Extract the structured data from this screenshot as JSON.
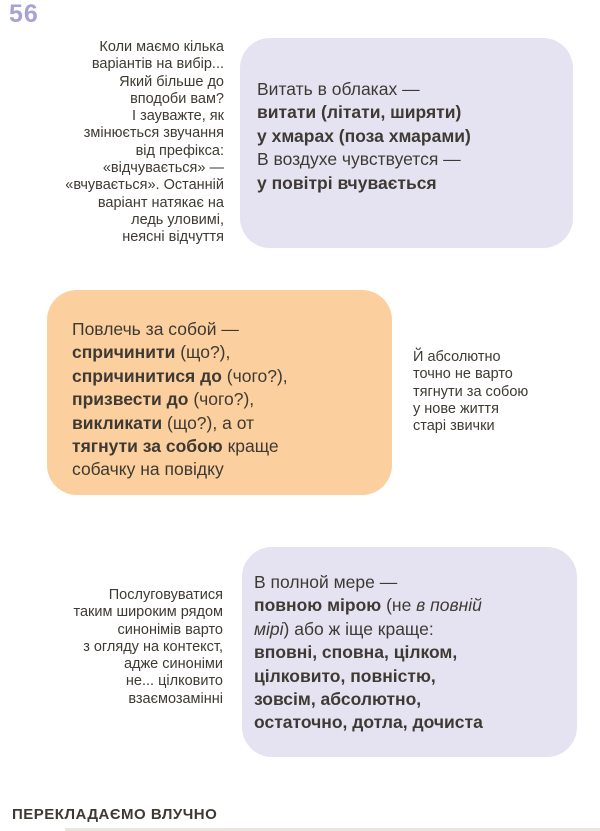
{
  "page": {
    "number": "56",
    "footer": "ПЕРЕКЛАДАЄМО ВЛУЧНО"
  },
  "colors": {
    "bg": "#ffffff",
    "lavender": "#e5e3f2",
    "orange": "#fbcf9e",
    "body-text": "#3e3a33",
    "page-number": "#a8a2d3"
  },
  "side_notes": {
    "prefix_note": "Коли маємо кілька\nваріантів на вибір...\nЯкий більше до\nвподоби вам?\nІ зауважте, як\nзмінюється звучання\nвід префікса:\n«відчувається» —\n«вчувається». Останній\nваріант натякає на\nледь уловимі,\nнеясні відчуття",
    "habits_note": "Й абсолютно\nточно не варто\nтягнути за собою\nу нове життя\nстарі звички",
    "synonyms_note": "Послуговуватися\nтаким широким рядом\nсинонімів варто\nз огляду на контекст,\nадже синоніми\nне... цілковито\nвзаємозамінні"
  },
  "bubbles": {
    "clouds": {
      "lines": [
        [
          {
            "t": "Витать в облаках —",
            "s": "r"
          }
        ],
        [
          {
            "t": "витати (літати, ширяти)",
            "s": "b"
          }
        ],
        [
          {
            "t": "у хмарах (поза хмарами)",
            "s": "b"
          }
        ],
        [
          {
            "t": "В воздухе чувствуется —",
            "s": "r"
          }
        ],
        [
          {
            "t": "у повітрі вчувається",
            "s": "b"
          }
        ]
      ]
    },
    "drag_along": {
      "lines": [
        [
          {
            "t": "Повлечь за собой —",
            "s": "r"
          }
        ],
        [
          {
            "t": "спричинити",
            "s": "b"
          },
          {
            "t": " (що?),",
            "s": "r"
          }
        ],
        [
          {
            "t": "спричинитися до",
            "s": "b"
          },
          {
            "t": " (чого?),",
            "s": "r"
          }
        ],
        [
          {
            "t": "призвести до",
            "s": "b"
          },
          {
            "t": " (чого?),",
            "s": "r"
          }
        ],
        [
          {
            "t": "викликати",
            "s": "b"
          },
          {
            "t": " (що?), а от",
            "s": "r"
          }
        ],
        [
          {
            "t": "тягнути за собою",
            "s": "b"
          },
          {
            "t": " краще",
            "s": "r"
          }
        ],
        [
          {
            "t": "собачку на повідку",
            "s": "r"
          }
        ]
      ]
    },
    "full_measure": {
      "lines": [
        [
          {
            "t": "В полной мере —",
            "s": "r"
          }
        ],
        [
          {
            "t": "повною мірою",
            "s": "b"
          },
          {
            "t": " (не ",
            "s": "r"
          },
          {
            "t": "в повній",
            "s": "i"
          }
        ],
        [
          {
            "t": "мірі",
            "s": "i"
          },
          {
            "t": ") або ж іще краще:",
            "s": "r"
          }
        ],
        [
          {
            "t": "вповні, сповна, цілком,",
            "s": "b"
          }
        ],
        [
          {
            "t": "цілковито, повністю,",
            "s": "b"
          }
        ],
        [
          {
            "t": "зовсім, абсолютно,",
            "s": "b"
          }
        ],
        [
          {
            "t": "остаточно, дотла, дочиста",
            "s": "b"
          }
        ]
      ]
    }
  }
}
